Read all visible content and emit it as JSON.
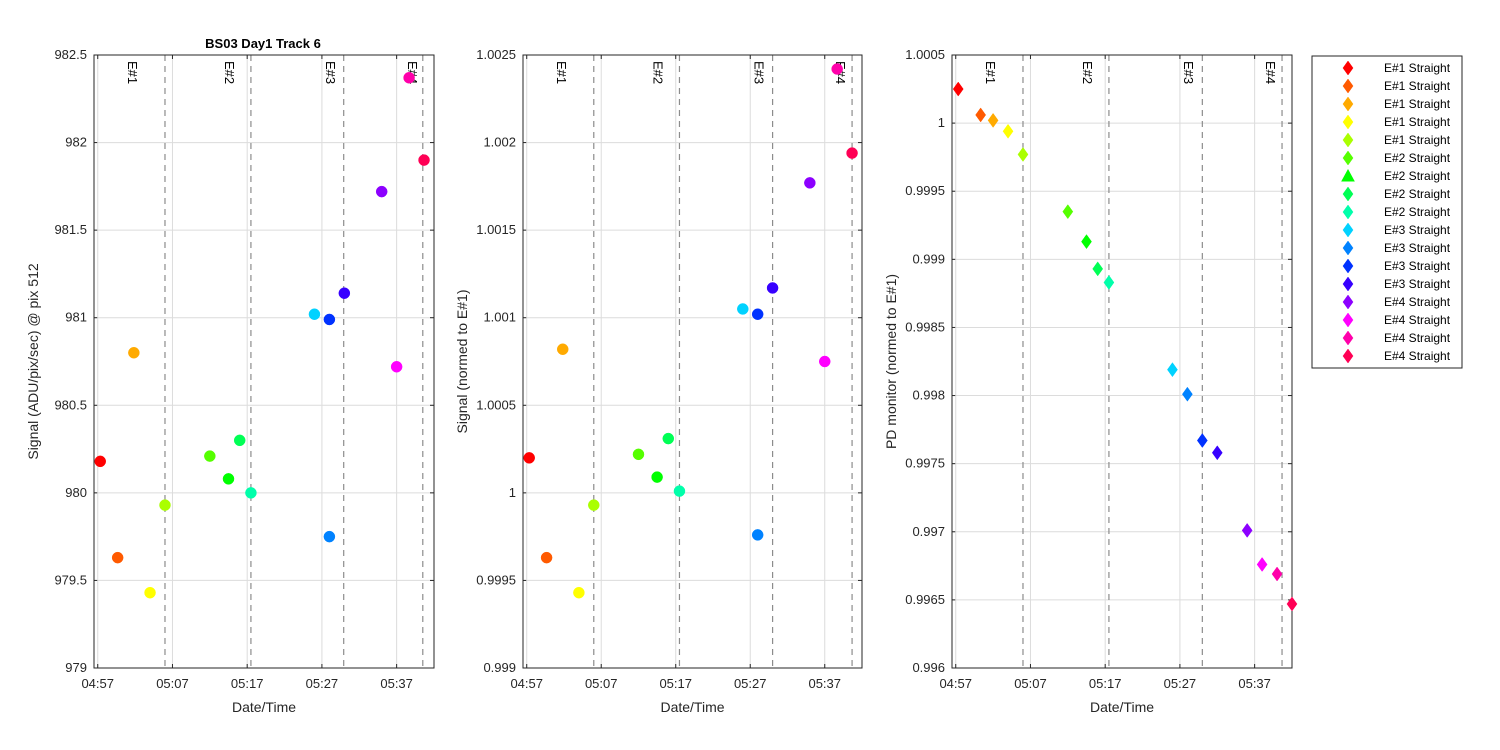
{
  "figure": {
    "title": "BS03 Day1 Track 6"
  },
  "colors": [
    "#ff0000",
    "#ff5a00",
    "#ffaa00",
    "#ffff00",
    "#aaff00",
    "#55ff00",
    "#00ff00",
    "#00ff55",
    "#00ffaa",
    "#00d2ff",
    "#0082ff",
    "#0032ff",
    "#3700ff",
    "#8c00ff",
    "#ff00ff",
    "#ff00aa",
    "#ff0055"
  ],
  "chart_data": [
    {
      "type": "scatter",
      "title": "BS03 Day1 Track 6",
      "xlabel": "Date/Time",
      "ylabel": "Signal (ADU/pix/sec) @ pix 512",
      "xlim": [
        "04:56:30",
        "05:42:00"
      ],
      "ylim": [
        979,
        982.5
      ],
      "xticks": [
        "04:57",
        "05:07",
        "05:17",
        "05:27",
        "05:37"
      ],
      "yticks": [
        "979",
        "979.5",
        "980",
        "980.5",
        "981",
        "981.5",
        "982",
        "982.5"
      ],
      "event_lines": [
        "05:06:00",
        "05:17:30",
        "05:29:55",
        "05:40:30"
      ],
      "event_labels": [
        {
          "text": "E#1",
          "x": "05:01:30"
        },
        {
          "text": "E#2",
          "x": "05:14:30"
        },
        {
          "text": "E#3",
          "x": "05:28:00"
        },
        {
          "text": "E#4",
          "x": "05:39:00"
        }
      ],
      "grid": true,
      "marker": "circle",
      "points": [
        {
          "x": "04:57:20",
          "y": 980.18
        },
        {
          "x": "04:59:40",
          "y": 979.63
        },
        {
          "x": "05:01:50",
          "y": 980.8
        },
        {
          "x": "05:04:00",
          "y": 979.43
        },
        {
          "x": "05:06:00",
          "y": 979.93
        },
        {
          "x": "05:12:00",
          "y": 980.21
        },
        {
          "x": "05:14:30",
          "y": 980.08
        },
        {
          "x": "05:16:00",
          "y": 980.3
        },
        {
          "x": "05:17:30",
          "y": 980.0
        },
        {
          "x": "05:26:00",
          "y": 981.02
        },
        {
          "x": "05:28:00",
          "y": 979.75
        },
        {
          "x": "05:28:00",
          "y": 980.99
        },
        {
          "x": "05:30:00",
          "y": 981.14
        },
        {
          "x": "05:35:00",
          "y": 981.72
        },
        {
          "x": "05:37:00",
          "y": 980.72
        },
        {
          "x": "05:38:40",
          "y": 982.37
        },
        {
          "x": "05:40:40",
          "y": 981.9
        }
      ]
    },
    {
      "type": "scatter",
      "xlabel": "Date/Time",
      "ylabel": "Signal (normed to E#1)",
      "xlim": [
        "04:56:30",
        "05:42:00"
      ],
      "ylim": [
        0.999,
        1.0025
      ],
      "xticks": [
        "04:57",
        "05:07",
        "05:17",
        "05:27",
        "05:37"
      ],
      "yticks": [
        "0.999",
        "0.9995",
        "1",
        "1.0005",
        "1.001",
        "1.0015",
        "1.002",
        "1.0025"
      ],
      "event_lines": [
        "05:06:00",
        "05:17:30",
        "05:30:00",
        "05:40:40"
      ],
      "event_labels": [
        {
          "text": "E#1",
          "x": "05:01:30"
        },
        {
          "text": "E#2",
          "x": "05:14:30"
        },
        {
          "text": "E#3",
          "x": "05:28:00"
        },
        {
          "text": "E#4",
          "x": "05:39:00"
        }
      ],
      "grid": true,
      "marker": "circle",
      "points": [
        {
          "x": "04:57:20",
          "y": 1.0002
        },
        {
          "x": "04:59:40",
          "y": 0.99963
        },
        {
          "x": "05:01:50",
          "y": 1.00082
        },
        {
          "x": "05:04:00",
          "y": 0.99943
        },
        {
          "x": "05:06:00",
          "y": 0.99993
        },
        {
          "x": "05:12:00",
          "y": 1.00022
        },
        {
          "x": "05:14:30",
          "y": 1.00009
        },
        {
          "x": "05:16:00",
          "y": 1.00031
        },
        {
          "x": "05:17:30",
          "y": 1.00001
        },
        {
          "x": "05:26:00",
          "y": 1.00105
        },
        {
          "x": "05:28:00",
          "y": 0.99976
        },
        {
          "x": "05:28:00",
          "y": 1.00102
        },
        {
          "x": "05:30:00",
          "y": 1.00117
        },
        {
          "x": "05:35:00",
          "y": 1.00177
        },
        {
          "x": "05:37:00",
          "y": 1.00075
        },
        {
          "x": "05:38:40",
          "y": 1.00242
        },
        {
          "x": "05:40:40",
          "y": 1.00194
        }
      ]
    },
    {
      "type": "scatter",
      "xlabel": "Date/Time",
      "ylabel": "PD monitor (normed to E#1)",
      "xlim": [
        "04:56:30",
        "05:42:00"
      ],
      "ylim": [
        0.996,
        1.0005
      ],
      "xticks": [
        "04:57",
        "05:07",
        "05:17",
        "05:27",
        "05:37"
      ],
      "yticks": [
        "0.996",
        "0.9965",
        "0.997",
        "0.9975",
        "0.998",
        "0.9985",
        "0.999",
        "0.9995",
        "1",
        "1.0005"
      ],
      "event_lines": [
        "05:06:00",
        "05:17:30",
        "05:30:00",
        "05:40:40"
      ],
      "event_labels": [
        {
          "text": "E#1",
          "x": "05:01:30"
        },
        {
          "text": "E#2",
          "x": "05:14:30"
        },
        {
          "text": "E#3",
          "x": "05:28:00"
        },
        {
          "text": "E#4",
          "x": "05:39:00"
        }
      ],
      "grid": true,
      "marker": "diamond",
      "points": [
        {
          "x": "04:57:20",
          "y": 1.00025
        },
        {
          "x": "05:00:20",
          "y": 1.00006
        },
        {
          "x": "05:02:00",
          "y": 1.00002
        },
        {
          "x": "05:04:00",
          "y": 0.99994
        },
        {
          "x": "05:06:00",
          "y": 0.99977
        },
        {
          "x": "05:12:00",
          "y": 0.99935
        },
        {
          "x": "05:14:30",
          "y": 0.99913
        },
        {
          "x": "05:16:00",
          "y": 0.99893
        },
        {
          "x": "05:17:30",
          "y": 0.99883
        },
        {
          "x": "05:26:00",
          "y": 0.99819
        },
        {
          "x": "05:28:00",
          "y": 0.99801
        },
        {
          "x": "05:30:00",
          "y": 0.99767
        },
        {
          "x": "05:32:00",
          "y": 0.99758
        },
        {
          "x": "05:36:00",
          "y": 0.99701
        },
        {
          "x": "05:38:00",
          "y": 0.99676
        },
        {
          "x": "05:40:00",
          "y": 0.99669
        },
        {
          "x": "05:42:00",
          "y": 0.99647
        }
      ]
    }
  ],
  "legend": {
    "placement": "right",
    "entries": [
      {
        "label": "E#1 Straight",
        "marker": "diamond"
      },
      {
        "label": "E#1 Straight",
        "marker": "diamond"
      },
      {
        "label": "E#1 Straight",
        "marker": "diamond"
      },
      {
        "label": "E#1 Straight",
        "marker": "diamond"
      },
      {
        "label": "E#1 Straight",
        "marker": "diamond"
      },
      {
        "label": "E#2 Straight",
        "marker": "diamond"
      },
      {
        "label": "E#2 Straight",
        "marker": "triangle"
      },
      {
        "label": "E#2 Straight",
        "marker": "diamond"
      },
      {
        "label": "E#2 Straight",
        "marker": "diamond"
      },
      {
        "label": "E#3 Straight",
        "marker": "diamond"
      },
      {
        "label": "E#3 Straight",
        "marker": "diamond"
      },
      {
        "label": "E#3 Straight",
        "marker": "diamond"
      },
      {
        "label": "E#3 Straight",
        "marker": "diamond"
      },
      {
        "label": "E#4 Straight",
        "marker": "diamond"
      },
      {
        "label": "E#4 Straight",
        "marker": "diamond"
      },
      {
        "label": "E#4 Straight",
        "marker": "diamond"
      },
      {
        "label": "E#4 Straight",
        "marker": "diamond"
      }
    ]
  }
}
